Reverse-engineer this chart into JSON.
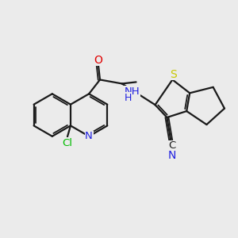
{
  "background_color": "#ebebeb",
  "bond_color": "#1a1a1a",
  "atom_colors": {
    "O": "#e00000",
    "N": "#2020e0",
    "Cl": "#00bb00",
    "S": "#c8c800",
    "NH": "#2020e0",
    "C": "#1a1a1a",
    "N_cyan": "#2020e0"
  },
  "figsize": [
    3.0,
    3.0
  ],
  "dpi": 100
}
